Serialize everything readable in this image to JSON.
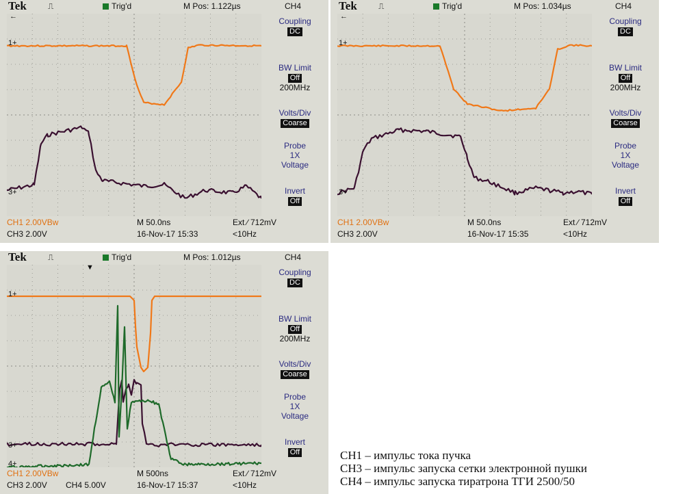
{
  "scopes": [
    {
      "header": {
        "brand": "Tek",
        "trigger_status": "Trig'd",
        "mpos": "M Pos: 1.122µs",
        "channel": "CH4"
      },
      "menu": {
        "coupling_label": "Coupling",
        "coupling_value": "DC",
        "bw_label": "BW Limit",
        "bw_value": "Off",
        "bw_freq": "200MHz",
        "vdiv_label": "Volts/Div",
        "vdiv_value": "Coarse",
        "probe_label": "Probe",
        "probe_x": "1X",
        "probe_type": "Voltage",
        "invert_label": "Invert",
        "invert_value": "Off"
      },
      "footer": {
        "ch1": "CH1  2.00VBw",
        "ch3": "CH3  2.00V",
        "ch4": "",
        "timebase": "M 50.0ns",
        "date": "16-Nov-17 15:33",
        "trigger": "Ext ∕ 712mV",
        "freq": "<10Hz"
      }
    },
    {
      "header": {
        "brand": "Tek",
        "trigger_status": "Trig'd",
        "mpos": "M Pos: 1.034µs",
        "channel": "CH4"
      },
      "menu": {
        "coupling_label": "Coupling",
        "coupling_value": "DC",
        "bw_label": "BW Limit",
        "bw_value": "Off",
        "bw_freq": "200MHz",
        "vdiv_label": "Volts/Div",
        "vdiv_value": "Coarse",
        "probe_label": "Probe",
        "probe_x": "1X",
        "probe_type": "Voltage",
        "invert_label": "Invert",
        "invert_value": "Off"
      },
      "footer": {
        "ch1": "CH1  2.00VBw",
        "ch3": "CH3  2.00V",
        "ch4": "",
        "timebase": "M 50.0ns",
        "date": "16-Nov-17 15:35",
        "trigger": "Ext ∕ 712mV",
        "freq": "<10Hz"
      }
    },
    {
      "header": {
        "brand": "Tek",
        "trigger_status": "Trig'd",
        "mpos": "M Pos: 1.012µs",
        "channel": "CH4"
      },
      "menu": {
        "coupling_label": "Coupling",
        "coupling_value": "DC",
        "bw_label": "BW Limit",
        "bw_value": "Off",
        "bw_freq": "200MHz",
        "vdiv_label": "Volts/Div",
        "vdiv_value": "Coarse",
        "probe_label": "Probe",
        "probe_x": "1X",
        "probe_type": "Voltage",
        "invert_label": "Invert",
        "invert_value": "Off"
      },
      "footer": {
        "ch1": "CH1  2.00VBw",
        "ch3": "CH3  2.00V",
        "ch4": "CH4  5.00V",
        "timebase": "M 500ns",
        "date": "16-Nov-17 15:37",
        "trigger": "Ext ∕ 712mV",
        "freq": "<10Hz"
      }
    }
  ],
  "colors": {
    "ch1": "#f07818",
    "ch3": "#3a1030",
    "ch4": "#1e6a2a",
    "grid": "#8a8a84"
  },
  "legend": {
    "line1": "CH1 – импульс тока пучка",
    "line2": "CH3 – импульс запуска сетки электронной пушки",
    "line3": "CH4 – импульс запуска тиратрона ТГИ 2500/50"
  }
}
